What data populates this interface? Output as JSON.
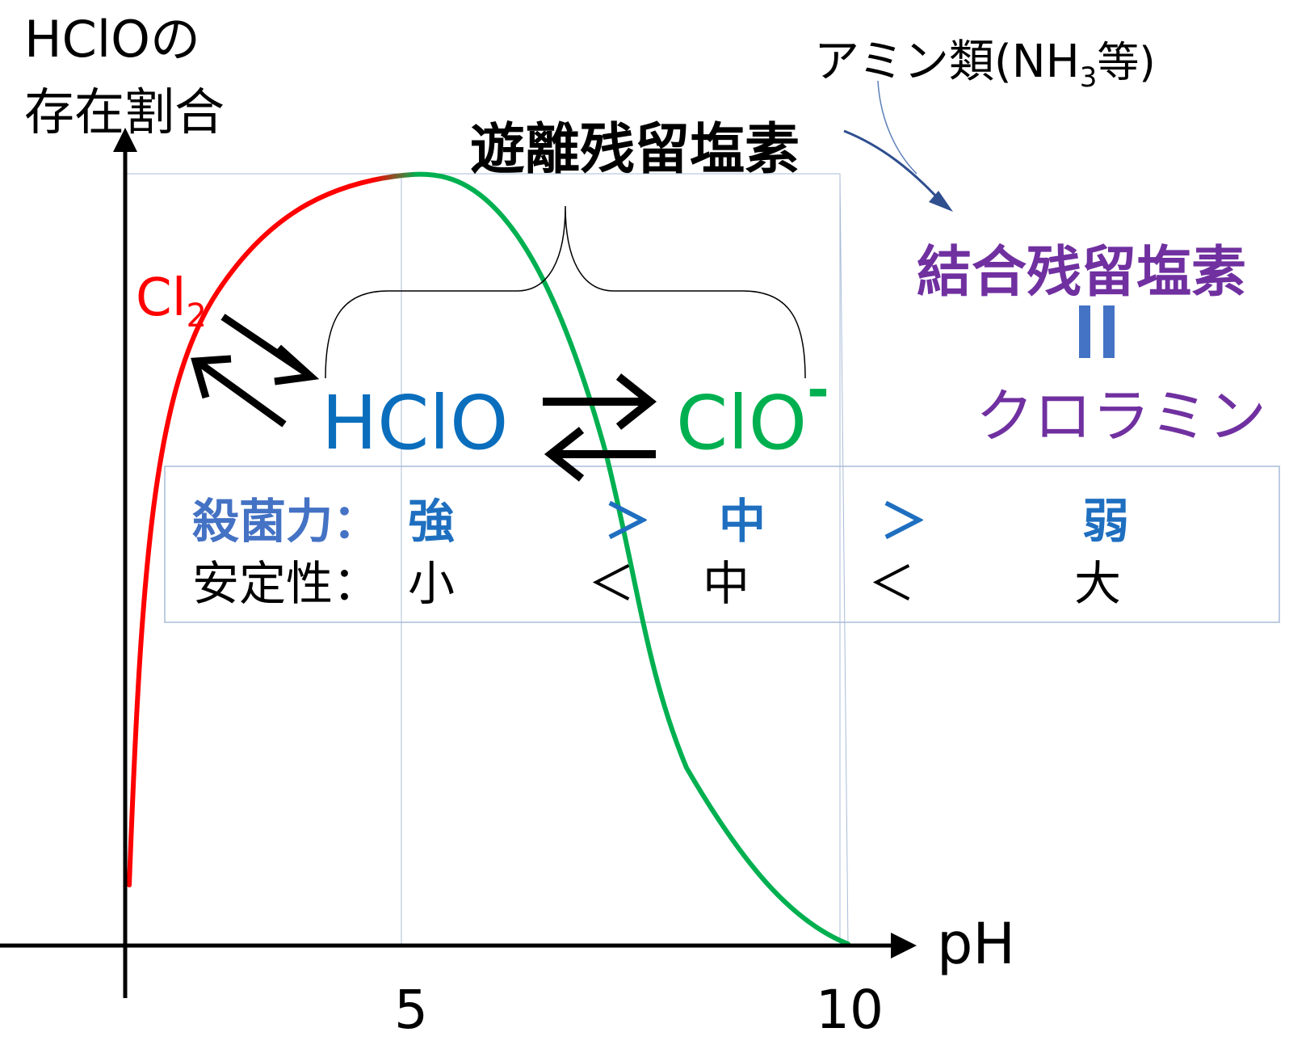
{
  "y_axis_label": {
    "line1": "HClOの",
    "line2": "存在割合"
  },
  "x_axis_label": "pH",
  "x_ticks": [
    "5",
    "10"
  ],
  "species": {
    "cl2": {
      "base": "Cl",
      "sub": "2",
      "color": "#ff0000"
    },
    "hclo": {
      "label": "HClO",
      "color": "#0a6ebd"
    },
    "clo": {
      "base": "ClO",
      "sup": "-",
      "color": "#00b050"
    }
  },
  "free_chlorine": "遊離残留塩素",
  "amine": {
    "base": "アミン類(NH",
    "sub": "3",
    "tail": "等)"
  },
  "combined_chlorine": "結合残留塩素",
  "equals_sign": "=",
  "chloramine": "クロラミン",
  "table": {
    "row1": {
      "label": "殺菌力：",
      "values": [
        "強",
        "＞",
        "中",
        "＞",
        "弱"
      ],
      "color": "#1f6fc0",
      "label_color": "#4472c4"
    },
    "row2": {
      "label": "安定性：",
      "values": [
        "小",
        "＜",
        "中",
        "＜",
        "大"
      ],
      "color": "#000000"
    }
  },
  "colors": {
    "red": "#ff0000",
    "green": "#00b050",
    "blue": "#0a6ebd",
    "purple": "#7030a0",
    "equals": "#4472c4",
    "arrow": "#2f4f8f",
    "grid": "#a9bcd8"
  }
}
